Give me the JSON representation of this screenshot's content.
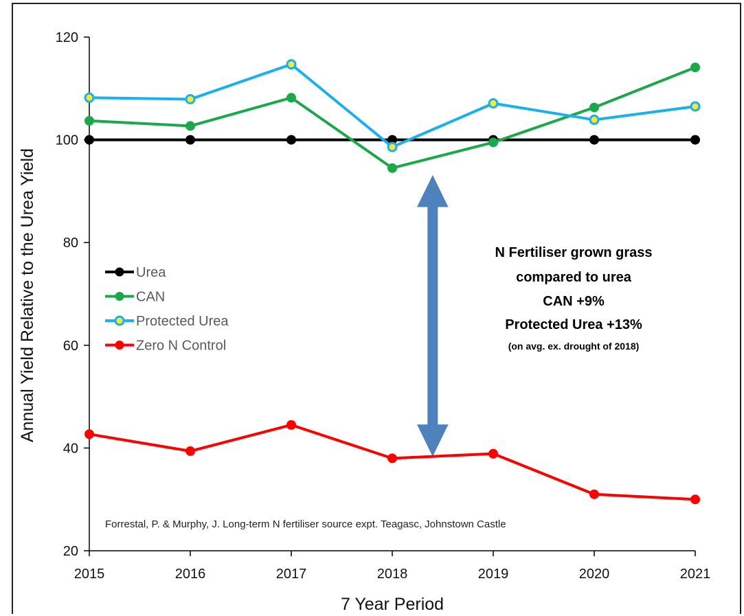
{
  "chart_data": {
    "type": "line",
    "x": [
      2015,
      2016,
      2017,
      2018,
      2019,
      2020,
      2021
    ],
    "xlabel": "7 Year Period",
    "ylabel": "Annual Yield Relative to the Urea Yield",
    "ylim": [
      20,
      120
    ],
    "yticks": [
      20,
      40,
      60,
      80,
      100,
      120
    ],
    "grid": false,
    "legend_placement": "left",
    "series": [
      {
        "name": "Urea",
        "color": "#000000",
        "marker": "filled",
        "values": [
          100,
          100,
          100,
          100,
          100,
          100,
          100
        ]
      },
      {
        "name": "CAN",
        "color": "#1ba84a",
        "marker": "filled",
        "values": [
          103.7,
          102.7,
          108.2,
          94.5,
          99.5,
          106.3,
          114.1
        ]
      },
      {
        "name": "Protected Urea",
        "color": "#1ab0ea",
        "marker": "hollow-yellow",
        "values": [
          108.2,
          107.9,
          114.7,
          98.6,
          107.1,
          103.9,
          106.5
        ]
      },
      {
        "name": "Zero N Control",
        "color": "#ff0000",
        "marker": "filled",
        "values": [
          42.7,
          39.4,
          44.5,
          38.0,
          38.9,
          31.0,
          30.0
        ]
      }
    ],
    "annotations": {
      "arrow": {
        "type": "double-arrow",
        "x": 2018.4,
        "y_from": 38.5,
        "y_to": 93,
        "color": "#4f81bd"
      },
      "headline_lines": [
        "N Fertiliser grown grass",
        "compared to urea",
        "CAN +9%",
        "Protected Urea +13%"
      ],
      "footnote": "(on avg. ex. drought of 2018)",
      "credit": "Forrestal, P. & Murphy, J. Long-term N fertiliser source expt. Teagasc, Johnstown Castle"
    }
  }
}
